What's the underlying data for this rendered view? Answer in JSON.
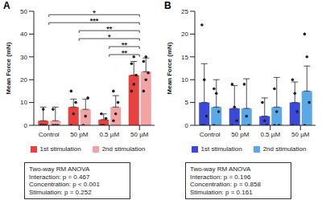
{
  "chart_data": [
    {
      "type": "bar",
      "title": "A",
      "categories": [
        "Control",
        "50 pM",
        "0.5 µM",
        "50 µM"
      ],
      "y_label": "Mean Force (mN)",
      "ylim": [
        0,
        50
      ],
      "yticks": [
        0,
        10,
        20,
        30,
        40,
        50
      ],
      "grid": false,
      "legend": "bottom",
      "series": [
        {
          "name": "1st stimulation",
          "color": "#e8413f",
          "values": [
            2,
            8,
            2.5,
            22
          ],
          "errors": [
            6,
            3.5,
            2.5,
            6
          ],
          "points": [
            [
              0,
              0,
              0,
              0,
              7
            ],
            [
              0,
              5,
              10,
              15
            ],
            [
              0,
              0,
              3,
              5
            ],
            [
              15,
              18,
              22,
              27,
              30
            ]
          ]
        },
        {
          "name": "2nd stimulation",
          "color": "#f4a3a3",
          "values": [
            2,
            7,
            8,
            23.5
          ],
          "errors": [
            6,
            4.5,
            5,
            6
          ],
          "points": [
            [
              0,
              0,
              0,
              7
            ],
            [
              0,
              4,
              12
            ],
            [
              2,
              5,
              10,
              15
            ],
            [
              15,
              20,
              23,
              28,
              30
            ]
          ]
        }
      ],
      "annotations": [
        {
          "from": "Control",
          "to": "50 µM",
          "label": "*"
        },
        {
          "from": "Control",
          "to": "50 µM",
          "label": "***"
        },
        {
          "from": "50 pM",
          "to": "50 µM",
          "label": "**"
        },
        {
          "from": "50 pM",
          "to": "50 µM",
          "label": "*"
        },
        {
          "from": "0.5 µM",
          "to": "50 µM",
          "label": "**"
        },
        {
          "from": "0.5 µM",
          "to": "50 µM",
          "label": "**"
        }
      ],
      "stats_box": {
        "title": "Two-way RM ANOVA",
        "lines": [
          "Interaction: p = 0.467",
          "Concentration: p < 0.001",
          "Stimulation: p = 0.252"
        ]
      }
    },
    {
      "type": "bar",
      "title": "B",
      "categories": [
        "Control",
        "50 pM",
        "0.5 µM",
        "50 µM"
      ],
      "y_label": "Mean Force (mN)",
      "ylim": [
        0,
        25
      ],
      "yticks": [
        0,
        5,
        10,
        15,
        20,
        25
      ],
      "grid": false,
      "legend": "bottom",
      "series": [
        {
          "name": "1st stimulation",
          "color": "#3b49d8",
          "values": [
            5,
            3.7,
            2,
            5
          ],
          "errors": [
            8.5,
            5,
            4,
            4.5
          ],
          "points": [
            [
              22,
              10,
              2,
              0,
              0
            ],
            [
              9,
              4,
              1,
              0
            ],
            [
              5,
              1,
              0
            ],
            [
              10,
              7,
              3,
              0
            ]
          ]
        },
        {
          "name": "2nd stimulation",
          "color": "#5aa9e6",
          "values": [
            4,
            3.7,
            4,
            7.5
          ],
          "errors": [
            6,
            6.5,
            6.5,
            5.5
          ],
          "points": [
            [
              8,
              7,
              3,
              0
            ],
            [
              9,
              2,
              0
            ],
            [
              8,
              3,
              0,
              0
            ],
            [
              20,
              15,
              5,
              0
            ]
          ]
        }
      ],
      "annotations": [],
      "stats_box": {
        "title": "Two-way RM ANOVA",
        "lines": [
          "Interaction: p = 0.196",
          "Concentration: p = 0.858",
          "Stimulation: p = 0.161"
        ]
      }
    }
  ]
}
